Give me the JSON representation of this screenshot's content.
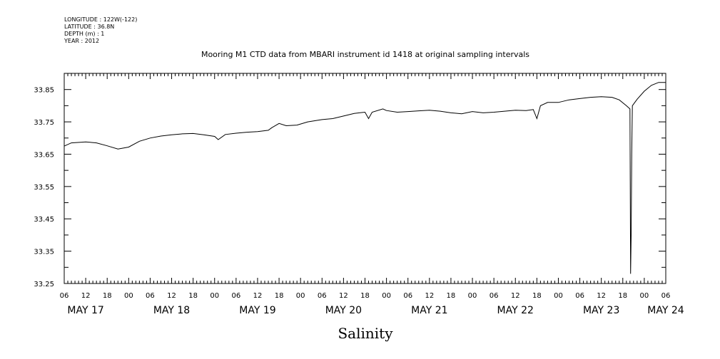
{
  "header": {
    "longitude": "LONGITUDE : 122W(-122)",
    "latitude": "LATITUDE : 36.8N",
    "depth": "DEPTH (m) : 1",
    "year": "YEAR : 2012"
  },
  "chart_data": {
    "type": "line",
    "title": "Mooring M1 CTD data from MBARI instrument id 1418 at original sampling intervals",
    "xlabel": "Salinity",
    "ylabel": "",
    "x_start": "2012-05-17T06:00",
    "x_end": "2012-05-24T06:00",
    "ylim": [
      33.25,
      33.9
    ],
    "y_ticks": [
      "33.25",
      "33.35",
      "33.45",
      "33.55",
      "33.65",
      "33.75",
      "33.85"
    ],
    "x_hour_labels": [
      "06",
      "12",
      "18",
      "00",
      "06",
      "12",
      "18",
      "00",
      "06",
      "12",
      "18",
      "00",
      "06",
      "12",
      "18",
      "00",
      "06",
      "12",
      "18",
      "00",
      "06",
      "12",
      "18",
      "00",
      "06",
      "12",
      "18",
      "00",
      "06"
    ],
    "day_labels": [
      "MAY 17",
      "MAY 18",
      "MAY 19",
      "MAY 20",
      "MAY 21",
      "MAY 22",
      "MAY 23",
      "MAY 24"
    ],
    "grid": false,
    "series": [
      {
        "points": [
          [
            "2012-05-17T06:00",
            33.675
          ],
          [
            "2012-05-17T08:00",
            33.685
          ],
          [
            "2012-05-17T12:00",
            33.688
          ],
          [
            "2012-05-17T15:00",
            33.685
          ],
          [
            "2012-05-17T18:00",
            33.676
          ],
          [
            "2012-05-17T21:00",
            33.666
          ],
          [
            "2012-05-18T00:00",
            33.672
          ],
          [
            "2012-05-18T03:00",
            33.69
          ],
          [
            "2012-05-18T06:00",
            33.7
          ],
          [
            "2012-05-18T09:00",
            33.706
          ],
          [
            "2012-05-18T12:00",
            33.71
          ],
          [
            "2012-05-18T15:00",
            33.713
          ],
          [
            "2012-05-18T18:00",
            33.714
          ],
          [
            "2012-05-18T21:00",
            33.71
          ],
          [
            "2012-05-19T00:00",
            33.705
          ],
          [
            "2012-05-19T01:00",
            33.695
          ],
          [
            "2012-05-19T03:00",
            33.711
          ],
          [
            "2012-05-19T06:00",
            33.715
          ],
          [
            "2012-05-19T09:00",
            33.718
          ],
          [
            "2012-05-19T12:00",
            33.72
          ],
          [
            "2012-05-19T15:00",
            33.724
          ],
          [
            "2012-05-19T16:00",
            33.732
          ],
          [
            "2012-05-19T18:00",
            33.745
          ],
          [
            "2012-05-19T20:00",
            33.738
          ],
          [
            "2012-05-19T23:00",
            33.74
          ],
          [
            "2012-05-20T02:00",
            33.75
          ],
          [
            "2012-05-20T06:00",
            33.757
          ],
          [
            "2012-05-20T09:00",
            33.76
          ],
          [
            "2012-05-20T12:00",
            33.768
          ],
          [
            "2012-05-20T15:00",
            33.776
          ],
          [
            "2012-05-20T18:00",
            33.78
          ],
          [
            "2012-05-20T19:00",
            33.76
          ],
          [
            "2012-05-20T20:00",
            33.78
          ],
          [
            "2012-05-20T23:00",
            33.79
          ],
          [
            "2012-05-21T00:00",
            33.785
          ],
          [
            "2012-05-21T03:00",
            33.78
          ],
          [
            "2012-05-21T06:00",
            33.782
          ],
          [
            "2012-05-21T09:00",
            33.784
          ],
          [
            "2012-05-21T12:00",
            33.786
          ],
          [
            "2012-05-21T15:00",
            33.783
          ],
          [
            "2012-05-21T18:00",
            33.778
          ],
          [
            "2012-05-21T21:00",
            33.775
          ],
          [
            "2012-05-22T00:00",
            33.782
          ],
          [
            "2012-05-22T03:00",
            33.778
          ],
          [
            "2012-05-22T06:00",
            33.78
          ],
          [
            "2012-05-22T09:00",
            33.783
          ],
          [
            "2012-05-22T12:00",
            33.786
          ],
          [
            "2012-05-22T15:00",
            33.785
          ],
          [
            "2012-05-22T17:00",
            33.788
          ],
          [
            "2012-05-22T18:00",
            33.76
          ],
          [
            "2012-05-22T19:00",
            33.8
          ],
          [
            "2012-05-22T21:00",
            33.81
          ],
          [
            "2012-05-23T00:00",
            33.81
          ],
          [
            "2012-05-23T03:00",
            33.818
          ],
          [
            "2012-05-23T06:00",
            33.822
          ],
          [
            "2012-05-23T09:00",
            33.826
          ],
          [
            "2012-05-23T12:00",
            33.828
          ],
          [
            "2012-05-23T15:00",
            33.826
          ],
          [
            "2012-05-23T17:00",
            33.818
          ],
          [
            "2012-05-23T19:00",
            33.8
          ],
          [
            "2012-05-23T20:00",
            33.79
          ],
          [
            "2012-05-23T20:10",
            33.28
          ],
          [
            "2012-05-23T20:20",
            33.4
          ],
          [
            "2012-05-23T20:30",
            33.65
          ],
          [
            "2012-05-23T20:40",
            33.8
          ],
          [
            "2012-05-23T22:00",
            33.82
          ],
          [
            "2012-05-24T00:00",
            33.845
          ],
          [
            "2012-05-24T02:00",
            33.863
          ],
          [
            "2012-05-24T04:00",
            33.872
          ],
          [
            "2012-05-24T06:00",
            33.872
          ]
        ]
      }
    ]
  }
}
